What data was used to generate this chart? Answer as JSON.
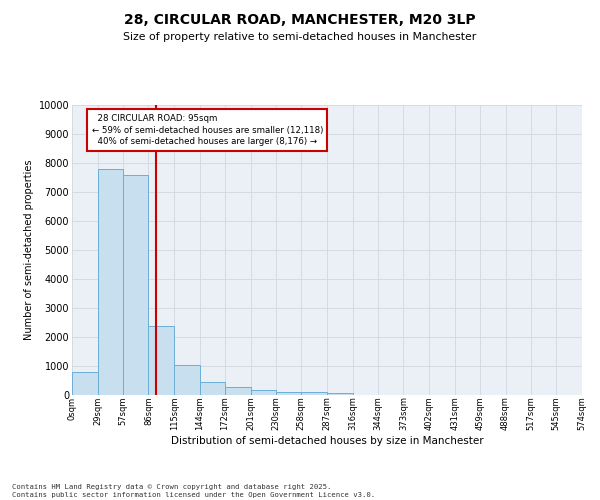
{
  "title": "28, CIRCULAR ROAD, MANCHESTER, M20 3LP",
  "subtitle": "Size of property relative to semi-detached houses in Manchester",
  "xlabel": "Distribution of semi-detached houses by size in Manchester",
  "ylabel": "Number of semi-detached properties",
  "property_size": 95,
  "property_label": "28 CIRCULAR ROAD: 95sqm",
  "pct_smaller": 59,
  "count_smaller": 12118,
  "pct_larger": 40,
  "count_larger": 8176,
  "bin_edges": [
    0,
    29,
    57,
    86,
    115,
    144,
    172,
    201,
    230,
    258,
    287,
    316,
    344,
    373,
    402,
    431,
    459,
    488,
    517,
    545,
    574
  ],
  "bin_labels": [
    "0sqm",
    "29sqm",
    "57sqm",
    "86sqm",
    "115sqm",
    "144sqm",
    "172sqm",
    "201sqm",
    "230sqm",
    "258sqm",
    "287sqm",
    "316sqm",
    "344sqm",
    "373sqm",
    "402sqm",
    "431sqm",
    "459sqm",
    "488sqm",
    "517sqm",
    "545sqm",
    "574sqm"
  ],
  "bar_heights": [
    800,
    7780,
    7600,
    2370,
    1040,
    450,
    290,
    170,
    120,
    110,
    70,
    0,
    0,
    0,
    0,
    0,
    0,
    0,
    0,
    0
  ],
  "bar_color": "#c8dff0",
  "bar_edge_color": "#6aaed6",
  "vline_color": "#cc0000",
  "vline_x": 95,
  "ylim": [
    0,
    10000
  ],
  "yticks": [
    0,
    1000,
    2000,
    3000,
    4000,
    5000,
    6000,
    7000,
    8000,
    9000,
    10000
  ],
  "grid_color": "#d0d8e0",
  "bg_color": "#eaf0f6",
  "footer_line1": "Contains HM Land Registry data © Crown copyright and database right 2025.",
  "footer_line2": "Contains public sector information licensed under the Open Government Licence v3.0."
}
